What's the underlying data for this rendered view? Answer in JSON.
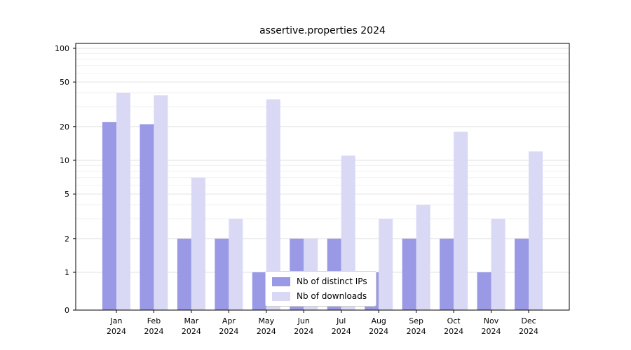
{
  "chart_data": {
    "type": "bar",
    "title": "assertive.properties 2024",
    "categories": [
      "Jan",
      "Feb",
      "Mar",
      "Apr",
      "May",
      "Jun",
      "Jul",
      "Aug",
      "Sep",
      "Oct",
      "Nov",
      "Dec"
    ],
    "year": "2024",
    "xlabel": "",
    "ylabel": "",
    "y_scale": "symlog",
    "ylim": [
      0,
      110
    ],
    "y_ticks": [
      0,
      1,
      2,
      5,
      10,
      20,
      50,
      100
    ],
    "grid": {
      "major": [
        1,
        2,
        5,
        10,
        20,
        50,
        100
      ],
      "minor": [
        3,
        4,
        6,
        7,
        8,
        9,
        30,
        40,
        60,
        70,
        80,
        90
      ]
    },
    "legend_position": "lower center",
    "series": [
      {
        "name": "Nb of distinct IPs",
        "color": "#9999e6",
        "values": [
          22,
          21,
          2,
          2,
          1,
          2,
          2,
          1,
          2,
          2,
          1,
          2
        ]
      },
      {
        "name": "Nb of downloads",
        "color": "#d9d9f6",
        "values": [
          40,
          38,
          7,
          3,
          35,
          2,
          11,
          3,
          4,
          18,
          3,
          12
        ]
      }
    ],
    "colors": {
      "grid_major": "#e0e0e0",
      "grid_minor": "#f0f0f0",
      "axis": "#000000",
      "tick_text": "#000000",
      "background": "#ffffff"
    }
  }
}
